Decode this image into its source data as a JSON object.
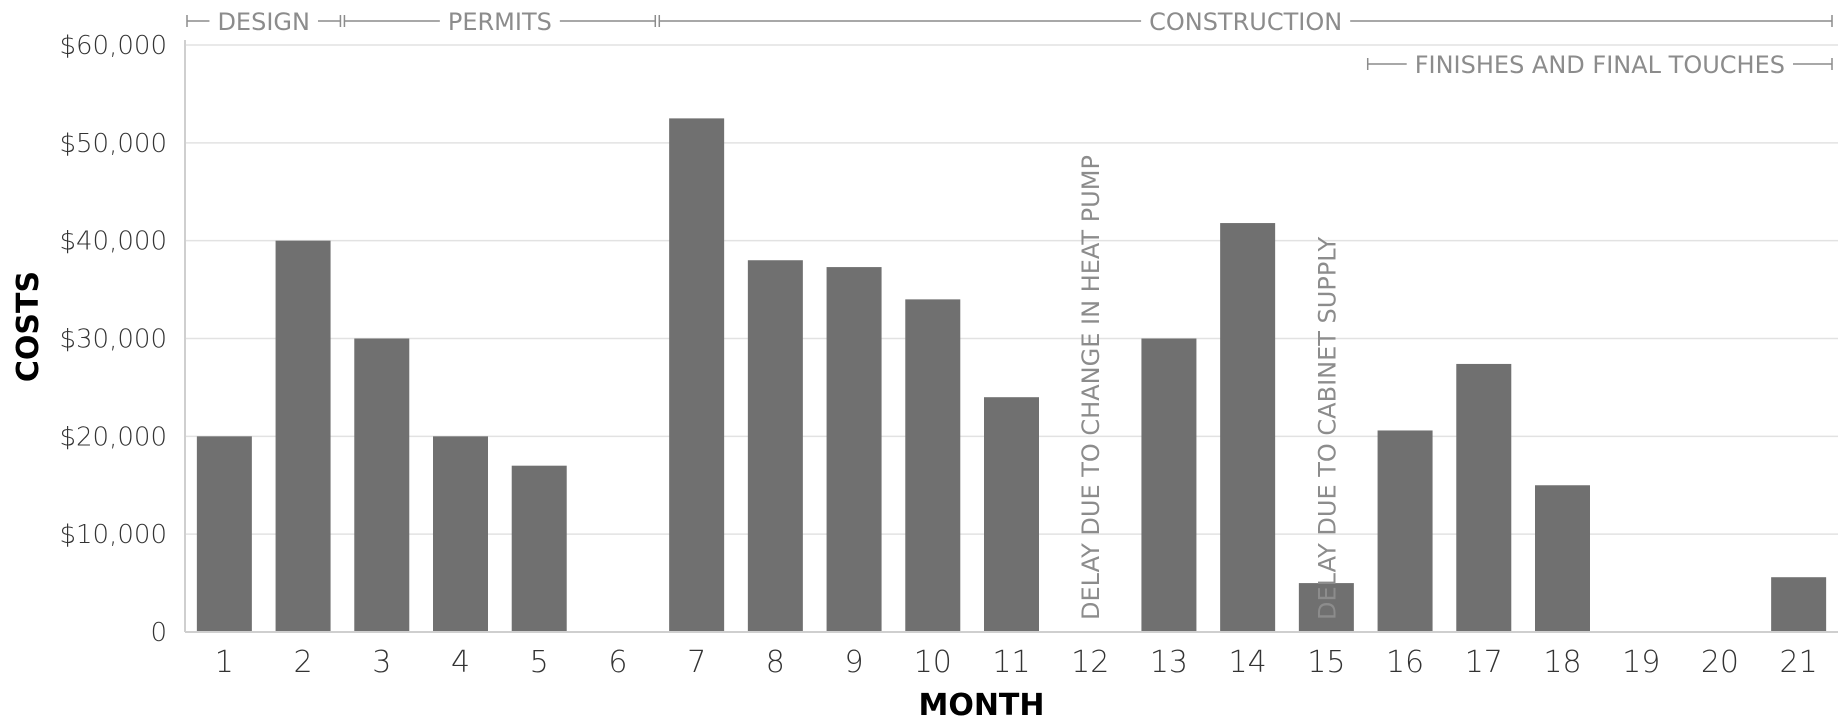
{
  "chart_data": {
    "type": "bar",
    "title": "",
    "xlabel": "MONTH",
    "ylabel": "COSTS",
    "ylim": [
      0,
      60000
    ],
    "yticks": [
      0,
      10000,
      20000,
      30000,
      40000,
      50000,
      60000
    ],
    "ytick_labels": [
      "0",
      "$10,000",
      "$20,000",
      "$30,000",
      "$40,000",
      "$50,000",
      "$60,000"
    ],
    "grid": true,
    "bar_color": "#707070",
    "grid_color": "#e2e2e2",
    "phase_color": "#8c8c8c",
    "categories": [
      "1",
      "2",
      "3",
      "4",
      "5",
      "6",
      "7",
      "8",
      "9",
      "10",
      "11",
      "12",
      "13",
      "14",
      "15",
      "16",
      "17",
      "18",
      "19",
      "20",
      "21"
    ],
    "values": [
      20000,
      40000,
      30000,
      20000,
      17000,
      0,
      52500,
      38000,
      37300,
      34000,
      24000,
      0,
      30000,
      41800,
      5000,
      20600,
      27400,
      15000,
      0,
      0,
      5600
    ],
    "phases": [
      {
        "label": "DESIGN",
        "start": 0.5,
        "end": 2.5,
        "row": 0
      },
      {
        "label": "PERMITS",
        "start": 2.5,
        "end": 6.5,
        "row": 0
      },
      {
        "label": "CONSTRUCTION",
        "start": 6.5,
        "end": 21.5,
        "row": 0
      },
      {
        "label": "FINISHES AND FINAL TOUCHES",
        "start": 15.5,
        "end": 21.5,
        "row": 1
      }
    ],
    "annotations": [
      {
        "month": 12,
        "text": "DELAY DUE TO CHANGE IN HEAT PUMP"
      },
      {
        "month": 15,
        "text": "DELAY DUE TO CABINET SUPPLY"
      }
    ]
  }
}
